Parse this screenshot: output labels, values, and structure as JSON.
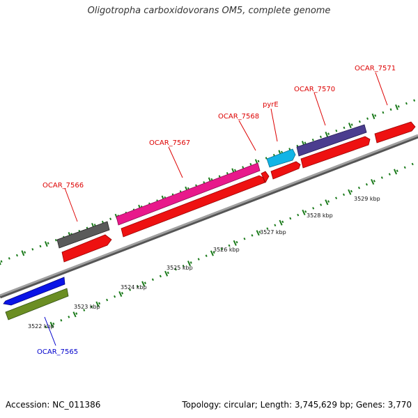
{
  "title": "Oligotropha carboxidovorans OM5, complete genome",
  "footer": {
    "accession": "Accession: NC_011386",
    "summary": "Topology: circular; Length: 3,745,629 bp; Genes: 3,770"
  },
  "scale_labels": [
    "3522 kbp",
    "3523 kbp",
    "3524 kbp",
    "3525 kbp",
    "3526 kbp",
    "3527 kbp",
    "3528 kbp",
    "3529 kbp"
  ],
  "gene_labels": [
    {
      "id": "OCAR_7565",
      "text": "OCAR_7565",
      "color": "#0000cc"
    },
    {
      "id": "OCAR_7566",
      "text": "OCAR_7566",
      "color": "#dd0000"
    },
    {
      "id": "OCAR_7567",
      "text": "OCAR_7567",
      "color": "#dd0000"
    },
    {
      "id": "OCAR_7568",
      "text": "OCAR_7568",
      "color": "#dd0000"
    },
    {
      "id": "pyrE",
      "text": "pyrE",
      "color": "#dd0000"
    },
    {
      "id": "OCAR_7570",
      "text": "OCAR_7570",
      "color": "#dd0000"
    },
    {
      "id": "OCAR_7571",
      "text": "OCAR_7571",
      "color": "#dd0000"
    }
  ],
  "colors": {
    "backbone": "#8a8a8a",
    "tick": "#1a7a1a",
    "cds": "#ee1111",
    "blue": "#0a14e6",
    "olive": "#6b8e23",
    "gray": "#5a5a5a",
    "pink": "#e8198b",
    "cyan": "#12b4e6",
    "purple": "#4b3d8f"
  }
}
